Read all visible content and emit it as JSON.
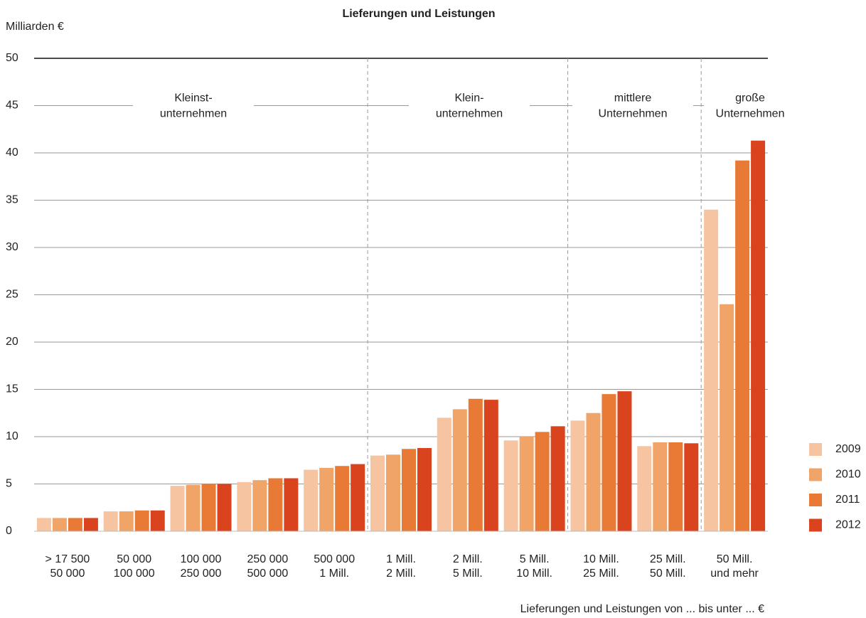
{
  "chart_data": {
    "type": "bar",
    "title": "Lieferungen und Leistungen",
    "y_label": "Milliarden €",
    "x_label": "Lieferungen und Leistungen von ... bis unter ... €",
    "categories": [
      [
        "> 17 500",
        "50 000"
      ],
      [
        "50 000",
        "100 000"
      ],
      [
        "100 000",
        "250 000"
      ],
      [
        "250 000",
        "500 000"
      ],
      [
        "500 000",
        "1 Mill."
      ],
      [
        "1 Mill.",
        "2 Mill."
      ],
      [
        "2 Mill.",
        "5 Mill."
      ],
      [
        "5 Mill.",
        "10 Mill."
      ],
      [
        "10 Mill.",
        "25 Mill."
      ],
      [
        "25 Mill.",
        "50 Mill."
      ],
      [
        "50 Mill.",
        "und mehr"
      ]
    ],
    "groups": [
      [
        "Kleinst-",
        "unternehmen"
      ],
      [
        "Klein-",
        "unternehmen"
      ],
      [
        "mittlere",
        "Unternehmen"
      ],
      [
        "große",
        "Unternehmen"
      ]
    ],
    "series": [
      {
        "name": "2009",
        "color": "#f6c4a0",
        "values": [
          1.4,
          2.1,
          4.8,
          5.2,
          6.5,
          8.0,
          12.0,
          9.6,
          11.7,
          9.0,
          34.0
        ]
      },
      {
        "name": "2010",
        "color": "#f0a468",
        "values": [
          1.4,
          2.1,
          4.9,
          5.4,
          6.7,
          8.1,
          12.9,
          10.0,
          12.5,
          9.4,
          24.0
        ]
      },
      {
        "name": "2011",
        "color": "#e87a35",
        "values": [
          1.4,
          2.2,
          5.0,
          5.6,
          6.9,
          8.7,
          14.0,
          10.5,
          14.5,
          9.4,
          39.2
        ]
      },
      {
        "name": "2012",
        "color": "#d9441e",
        "values": [
          1.4,
          2.2,
          5.0,
          5.6,
          7.1,
          8.8,
          13.9,
          11.1,
          14.8,
          9.3,
          41.3
        ]
      }
    ],
    "ylim": [
      0,
      50
    ],
    "yticks": [
      0,
      5,
      10,
      15,
      20,
      25,
      30,
      35,
      40,
      45,
      50
    ],
    "grid": true,
    "legend": "right"
  }
}
